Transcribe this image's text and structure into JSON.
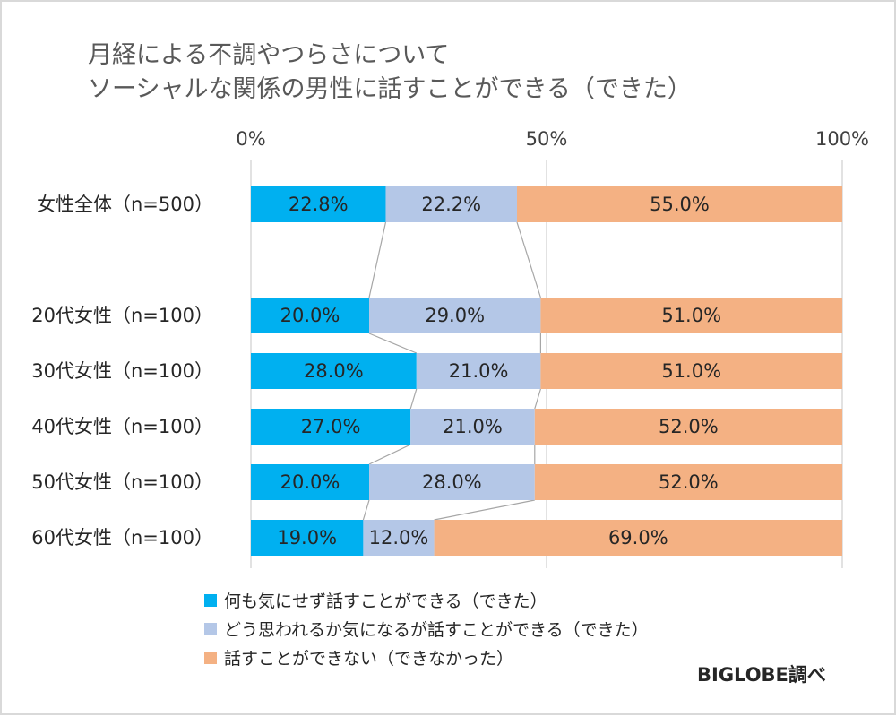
{
  "chart_data": {
    "type": "bar",
    "orientation": "horizontal",
    "stacked": "percent",
    "title_lines": [
      "月経による不調やつらさについて",
      "ソーシャルな関係の男性に話すことができる（できた）"
    ],
    "xlim": [
      0,
      100
    ],
    "x_ticks": [
      "0%",
      "50%",
      "100%"
    ],
    "grid": true,
    "legend_position": "bottom-left",
    "categories": [
      "女性全体（n=500）",
      "20代女性（n=100）",
      "30代女性（n=100）",
      "40代女性（n=100）",
      "50代女性（n=100）",
      "60代女性（n=100）"
    ],
    "category_gap_after": 0,
    "series": [
      {
        "name": "何も気にせず話すことができる（できた）",
        "color": "#00b0f0",
        "values": [
          22.8,
          20.0,
          28.0,
          27.0,
          20.0,
          19.0
        ],
        "labels": [
          "22.8%",
          "20.0%",
          "28.0%",
          "27.0%",
          "20.0%",
          "19.0%"
        ]
      },
      {
        "name": "どう思われるか気になるが話すことができる（できた）",
        "color": "#b4c7e7",
        "values": [
          22.2,
          29.0,
          21.0,
          21.0,
          28.0,
          12.0
        ],
        "labels": [
          "22.2%",
          "29.0%",
          "21.0%",
          "21.0%",
          "28.0%",
          "12.0%"
        ]
      },
      {
        "name": "話すことができない（できなかった）",
        "color": "#f4b183",
        "values": [
          55.0,
          51.0,
          51.0,
          52.0,
          52.0,
          69.0
        ],
        "labels": [
          "55.0%",
          "51.0%",
          "51.0%",
          "52.0%",
          "52.0%",
          "69.0%"
        ]
      }
    ],
    "series_lines": true,
    "source": "BIGLOBE調べ"
  },
  "colors": {
    "gridline": "#d9d9d9",
    "series_line": "#a6a6a6",
    "frame": "#d9d9d9"
  }
}
